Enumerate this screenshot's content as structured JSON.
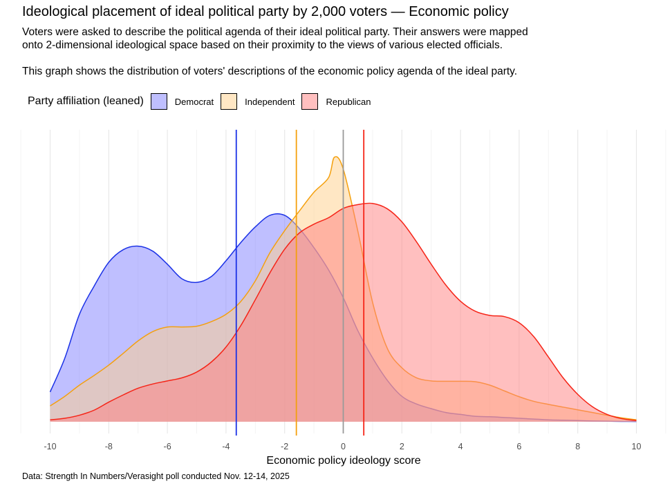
{
  "chart_data": {
    "type": "area",
    "title": "Ideological placement of ideal political party by 2,000 voters — Economic policy",
    "subtitle": [
      "Voters were asked to describe the political agenda of their ideal political party. Their answers were mapped",
      "onto 2-dimensional ideological space based on their proximity to the views of various elected officials.",
      "",
      "This graph shows the distribution of voters' descriptions of the economic policy agenda of the ideal party."
    ],
    "xlabel": "Economic policy ideology score",
    "ylabel": "",
    "xlim": [
      -10,
      10
    ],
    "xticks": [
      -10,
      -8,
      -6,
      -4,
      -2,
      0,
      2,
      4,
      6,
      8,
      10
    ],
    "ylim": [
      0,
      0.3
    ],
    "zero_line_x": 0,
    "grid": true,
    "legend": {
      "title": "Party affiliation (leaned)",
      "position": "top-left",
      "entries": [
        "Democrat",
        "Independent",
        "Republican"
      ]
    },
    "caption": "Data: Strength In Numbers/Verasight poll conducted Nov. 12-14, 2025",
    "series": [
      {
        "name": "Democrat",
        "fill": "#8080ff",
        "stroke": "#1a31e6",
        "mean": -3.65,
        "density": [
          [
            -10,
            0.0406
          ],
          [
            -9.5,
            0.0868
          ],
          [
            -9,
            0.1469
          ],
          [
            -8.5,
            0.1853
          ],
          [
            -8,
            0.2179
          ],
          [
            -7.5,
            0.2353
          ],
          [
            -7,
            0.24
          ],
          [
            -6.5,
            0.2332
          ],
          [
            -6,
            0.2153
          ],
          [
            -5.5,
            0.1953
          ],
          [
            -5,
            0.1905
          ],
          [
            -4.5,
            0.1985
          ],
          [
            -4,
            0.22
          ],
          [
            -3.5,
            0.2447
          ],
          [
            -3,
            0.2663
          ],
          [
            -2.5,
            0.2821
          ],
          [
            -2,
            0.2821
          ],
          [
            -1.5,
            0.2642
          ],
          [
            -1,
            0.2379
          ],
          [
            -0.5,
            0.2074
          ],
          [
            0,
            0.1695
          ],
          [
            0.5,
            0.1242
          ],
          [
            1,
            0.0874
          ],
          [
            1.5,
            0.0568
          ],
          [
            2,
            0.0347
          ],
          [
            2.5,
            0.0242
          ],
          [
            3,
            0.0179
          ],
          [
            3.5,
            0.0126
          ],
          [
            4,
            0.01
          ],
          [
            4.5,
            0.0074
          ],
          [
            5,
            0.0068
          ],
          [
            5.5,
            0.0058
          ],
          [
            6,
            0.0047
          ],
          [
            6.5,
            0.0037
          ],
          [
            7,
            0.0026
          ],
          [
            7.5,
            0.0021
          ],
          [
            8,
            0.0016
          ],
          [
            8.5,
            0.0011
          ],
          [
            9,
            0.0008
          ],
          [
            9.5,
            0.0005
          ],
          [
            10,
            0.0003
          ]
        ]
      },
      {
        "name": "Independent",
        "fill": "#ffd08a",
        "stroke": "#f4a00e",
        "mean": -1.6,
        "density": [
          [
            -10,
            0.0216
          ],
          [
            -9.5,
            0.0347
          ],
          [
            -9,
            0.05
          ],
          [
            -8.5,
            0.0632
          ],
          [
            -8,
            0.0774
          ],
          [
            -7.5,
            0.0937
          ],
          [
            -7,
            0.1105
          ],
          [
            -6.5,
            0.1232
          ],
          [
            -6,
            0.1295
          ],
          [
            -5.5,
            0.1295
          ],
          [
            -5,
            0.1305
          ],
          [
            -4.5,
            0.1368
          ],
          [
            -4,
            0.1468
          ],
          [
            -3.5,
            0.1642
          ],
          [
            -3,
            0.1926
          ],
          [
            -2.5,
            0.2311
          ],
          [
            -2,
            0.2611
          ],
          [
            -1.5,
            0.2879
          ],
          [
            -1,
            0.3137
          ],
          [
            -0.5,
            0.3337
          ],
          [
            -0.3,
            0.3616
          ],
          [
            0,
            0.3453
          ],
          [
            0.5,
            0.26
          ],
          [
            1,
            0.1632
          ],
          [
            1.5,
            0.1005
          ],
          [
            2,
            0.0737
          ],
          [
            2.5,
            0.06
          ],
          [
            3,
            0.0558
          ],
          [
            3.5,
            0.0553
          ],
          [
            4,
            0.0553
          ],
          [
            4.5,
            0.0547
          ],
          [
            5,
            0.05
          ],
          [
            5.5,
            0.0421
          ],
          [
            6,
            0.0342
          ],
          [
            6.5,
            0.0279
          ],
          [
            7,
            0.0237
          ],
          [
            7.5,
            0.02
          ],
          [
            8,
            0.0163
          ],
          [
            8.5,
            0.0126
          ],
          [
            9,
            0.0089
          ],
          [
            9.5,
            0.0053
          ],
          [
            10,
            0.0026
          ]
        ]
      },
      {
        "name": "Republican",
        "fill": "#ff8080",
        "stroke": "#f52417",
        "mean": 0.7,
        "density": [
          [
            -10,
            0.0026
          ],
          [
            -9.5,
            0.0047
          ],
          [
            -9,
            0.0089
          ],
          [
            -8.5,
            0.0158
          ],
          [
            -8,
            0.0268
          ],
          [
            -7.5,
            0.0368
          ],
          [
            -7,
            0.0458
          ],
          [
            -6.5,
            0.0516
          ],
          [
            -6,
            0.0558
          ],
          [
            -5.5,
            0.06
          ],
          [
            -5,
            0.0679
          ],
          [
            -4.5,
            0.0816
          ],
          [
            -4,
            0.1021
          ],
          [
            -3.5,
            0.1311
          ],
          [
            -3,
            0.1668
          ],
          [
            -2.5,
            0.2037
          ],
          [
            -2,
            0.2358
          ],
          [
            -1.5,
            0.2579
          ],
          [
            -1,
            0.27
          ],
          [
            -0.5,
            0.2789
          ],
          [
            0,
            0.2916
          ],
          [
            0.5,
            0.2968
          ],
          [
            1,
            0.2984
          ],
          [
            1.5,
            0.2911
          ],
          [
            2,
            0.2732
          ],
          [
            2.5,
            0.2458
          ],
          [
            3,
            0.2153
          ],
          [
            3.5,
            0.1868
          ],
          [
            4,
            0.1647
          ],
          [
            4.5,
            0.1511
          ],
          [
            5,
            0.1453
          ],
          [
            5.5,
            0.1437
          ],
          [
            6,
            0.1353
          ],
          [
            6.5,
            0.1163
          ],
          [
            7,
            0.0884
          ],
          [
            7.5,
            0.06
          ],
          [
            8,
            0.0374
          ],
          [
            8.5,
            0.0205
          ],
          [
            9,
            0.01
          ],
          [
            9.5,
            0.0042
          ],
          [
            10,
            0.0016
          ]
        ]
      }
    ]
  }
}
